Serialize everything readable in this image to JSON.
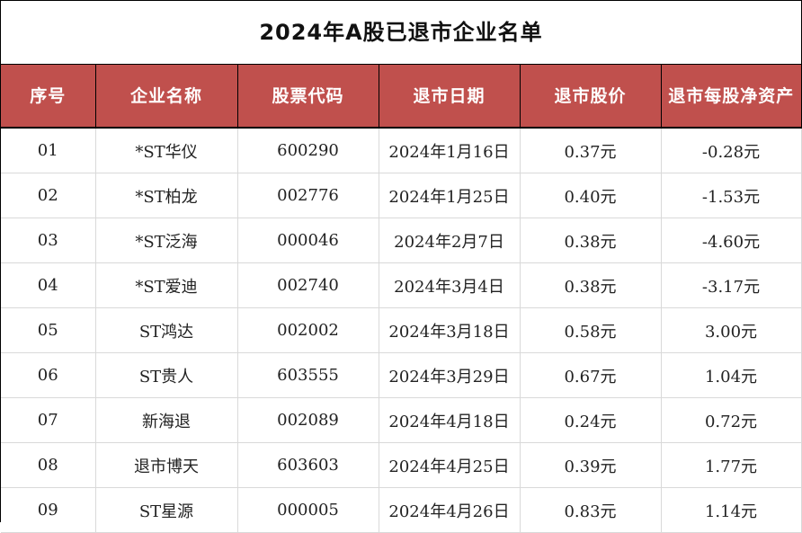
{
  "title": "2024年A股已退市企业名单",
  "headers": [
    "序号",
    "企业名称",
    "股票代码",
    "退市日期",
    "退市股价",
    "退市每股净资产"
  ],
  "rows": [
    [
      "01",
      "*ST华仪",
      "600290",
      "2024年1月16日",
      "0.37元",
      "-0.28元"
    ],
    [
      "02",
      "*ST柏龙",
      "002776",
      "2024年1月25日",
      "0.40元",
      "-1.53元"
    ],
    [
      "03",
      "*ST泛海",
      "000046",
      "2024年2月7日",
      "0.38元",
      "-4.60元"
    ],
    [
      "04",
      "*ST爱迪",
      "002740",
      "2024年3月4日",
      "0.38元",
      "-3.17元"
    ],
    [
      "05",
      "ST鸿达",
      "002002",
      "2024年3月18日",
      "0.58元",
      "3.00元"
    ],
    [
      "06",
      "ST贵人",
      "603555",
      "2024年3月29日",
      "0.67元",
      "1.04元"
    ],
    [
      "07",
      "新海退",
      "002089",
      "2024年4月18日",
      "0.24元",
      "0.72元"
    ],
    [
      "08",
      "退市博天",
      "603603",
      "2024年4月25日",
      "0.39元",
      "1.77元"
    ],
    [
      "09",
      "ST星源",
      "000005",
      "2024年4月26日",
      "0.83元",
      "1.14元"
    ]
  ],
  "colors": {
    "header_bg": "#c0504d",
    "header_text": "#ffffff",
    "grid_line": "#d9d9d9"
  }
}
